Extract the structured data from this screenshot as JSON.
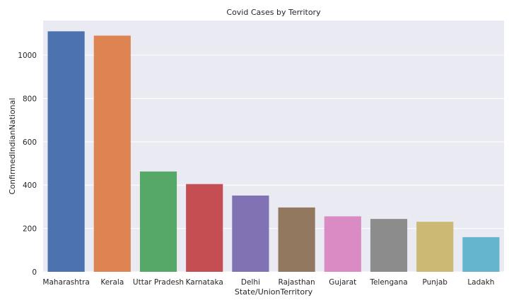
{
  "chart_data": {
    "type": "bar",
    "title": "Covid Cases by Territory",
    "xlabel": "State/UnionTerritory",
    "ylabel": "ConfirmedIndianNational",
    "categories": [
      "Maharashtra",
      "Kerala",
      "Uttar Pradesh",
      "Karnataka",
      "Delhi",
      "Rajasthan",
      "Gujarat",
      "Telengana",
      "Punjab",
      "Ladakh"
    ],
    "values": [
      1110,
      1090,
      463,
      405,
      352,
      297,
      256,
      244,
      231,
      160
    ],
    "colors": [
      "#4c72b0",
      "#dd8452",
      "#55a868",
      "#c44e52",
      "#8172b3",
      "#937860",
      "#da8bc3",
      "#8c8c8c",
      "#ccb974",
      "#64b5cd"
    ],
    "yticks": [
      "0",
      "200",
      "400",
      "600",
      "800",
      "1000"
    ],
    "ylim": [
      0,
      1160
    ],
    "grid": true,
    "background": "#eaeaf2",
    "grid_color": "#ffffff"
  }
}
